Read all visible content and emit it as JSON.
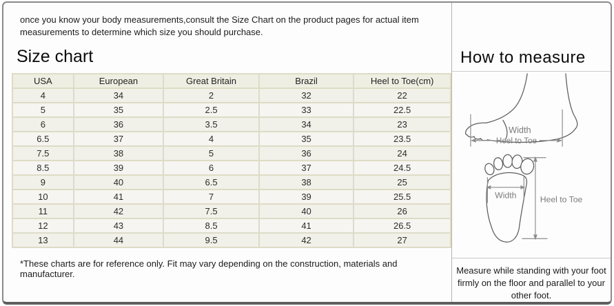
{
  "page": {
    "intro": "once you know your body measurements,consult the Size Chart on the product pages for actual item measurements to determine which size you should purchase.",
    "footnote": "*These charts are for reference only. Fit may vary depending on the construction, materials and manufacturer."
  },
  "size_chart": {
    "title": "Size chart",
    "columns": [
      "USA",
      "European",
      "Great Britain",
      "Brazil",
      "Heel to Toe(cm)"
    ],
    "rows": [
      [
        "4",
        "34",
        "2",
        "32",
        "22"
      ],
      [
        "5",
        "35",
        "2.5",
        "33",
        "22.5"
      ],
      [
        "6",
        "36",
        "3.5",
        "34",
        "23"
      ],
      [
        "6.5",
        "37",
        "4",
        "35",
        "23.5"
      ],
      [
        "7.5",
        "38",
        "5",
        "36",
        "24"
      ],
      [
        "8.5",
        "39",
        "6",
        "37",
        "24.5"
      ],
      [
        "9",
        "40",
        "6.5",
        "38",
        "25"
      ],
      [
        "10",
        "41",
        "7",
        "39",
        "25.5"
      ],
      [
        "11",
        "42",
        "7.5",
        "40",
        "26"
      ],
      [
        "12",
        "43",
        "8.5",
        "41",
        "26.5"
      ],
      [
        "13",
        "44",
        "9.5",
        "42",
        "27"
      ]
    ]
  },
  "how_to_measure": {
    "title": "How to measure",
    "side_view": {
      "width_label": "Width",
      "length_label": "Heel to Toe"
    },
    "top_view": {
      "width_label": "Width",
      "length_label": "Heel to Toe"
    },
    "note": "Measure while standing with your foot firmly on the floor and parallel to your other foot."
  },
  "colors": {
    "table_border": "#dedbc6",
    "table_header_bg": "#efeee2",
    "row_bg_odd": "#f1f0e9",
    "row_bg_even": "#f6f5f1",
    "outer_border": "#8a8a8a",
    "diagram_stroke": "#5f5f5f",
    "measure_stroke": "#8c8c8c"
  }
}
